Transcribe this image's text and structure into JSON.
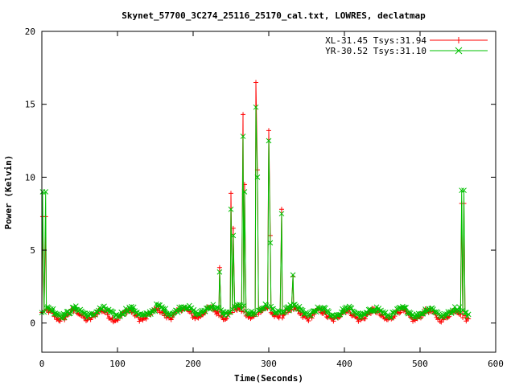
{
  "chart_data": {
    "type": "line",
    "title": "Skynet_57700_3C274_25116_25170_cal.txt, LOWRES, declatmap",
    "xlabel": "Time(Seconds)",
    "ylabel": "Power (Kelvin)",
    "xlim": [
      0,
      600
    ],
    "ylim": [
      -2,
      20
    ],
    "x_ticks": [
      0,
      100,
      200,
      300,
      400,
      500,
      600
    ],
    "y_ticks": [
      0,
      5,
      10,
      15,
      20
    ],
    "grid": false,
    "legend_position": "top-right",
    "series": [
      {
        "name": "XL-31.45 Tsys:31.94",
        "color": "#ff0000",
        "marker": "+",
        "baseline": {
          "x_start": 0,
          "x_end": 565,
          "step": 1.5,
          "level": 0.55,
          "amplitude": 0.32,
          "period": 36,
          "phase": 0.4
        },
        "spikes": [
          {
            "x": 1,
            "y": 7.3
          },
          {
            "x": 5,
            "y": 7.3
          },
          {
            "x": 235,
            "y": 3.8
          },
          {
            "x": 250,
            "y": 8.9
          },
          {
            "x": 253,
            "y": 6.5
          },
          {
            "x": 266,
            "y": 14.3
          },
          {
            "x": 268,
            "y": 9.5
          },
          {
            "x": 283,
            "y": 16.5
          },
          {
            "x": 285,
            "y": 10.5
          },
          {
            "x": 300,
            "y": 13.2
          },
          {
            "x": 302,
            "y": 6.0
          },
          {
            "x": 317,
            "y": 7.8
          },
          {
            "x": 332,
            "y": 3.2
          },
          {
            "x": 555,
            "y": 8.2
          },
          {
            "x": 558,
            "y": 8.2
          }
        ]
      },
      {
        "name": "YR-30.52 Tsys:31.10",
        "color": "#00c000",
        "marker": "x",
        "baseline": {
          "x_start": 0,
          "x_end": 565,
          "step": 1.5,
          "level": 0.75,
          "amplitude": 0.25,
          "period": 36,
          "phase": 0.0
        },
        "spikes": [
          {
            "x": 1,
            "y": 9.0
          },
          {
            "x": 5,
            "y": 9.0
          },
          {
            "x": 235,
            "y": 3.5
          },
          {
            "x": 250,
            "y": 7.8
          },
          {
            "x": 253,
            "y": 6.0
          },
          {
            "x": 266,
            "y": 12.8
          },
          {
            "x": 268,
            "y": 9.0
          },
          {
            "x": 283,
            "y": 14.8
          },
          {
            "x": 285,
            "y": 10.0
          },
          {
            "x": 300,
            "y": 12.5
          },
          {
            "x": 302,
            "y": 5.5
          },
          {
            "x": 317,
            "y": 7.5
          },
          {
            "x": 332,
            "y": 3.3
          },
          {
            "x": 555,
            "y": 9.1
          },
          {
            "x": 558,
            "y": 9.1
          }
        ]
      }
    ]
  }
}
